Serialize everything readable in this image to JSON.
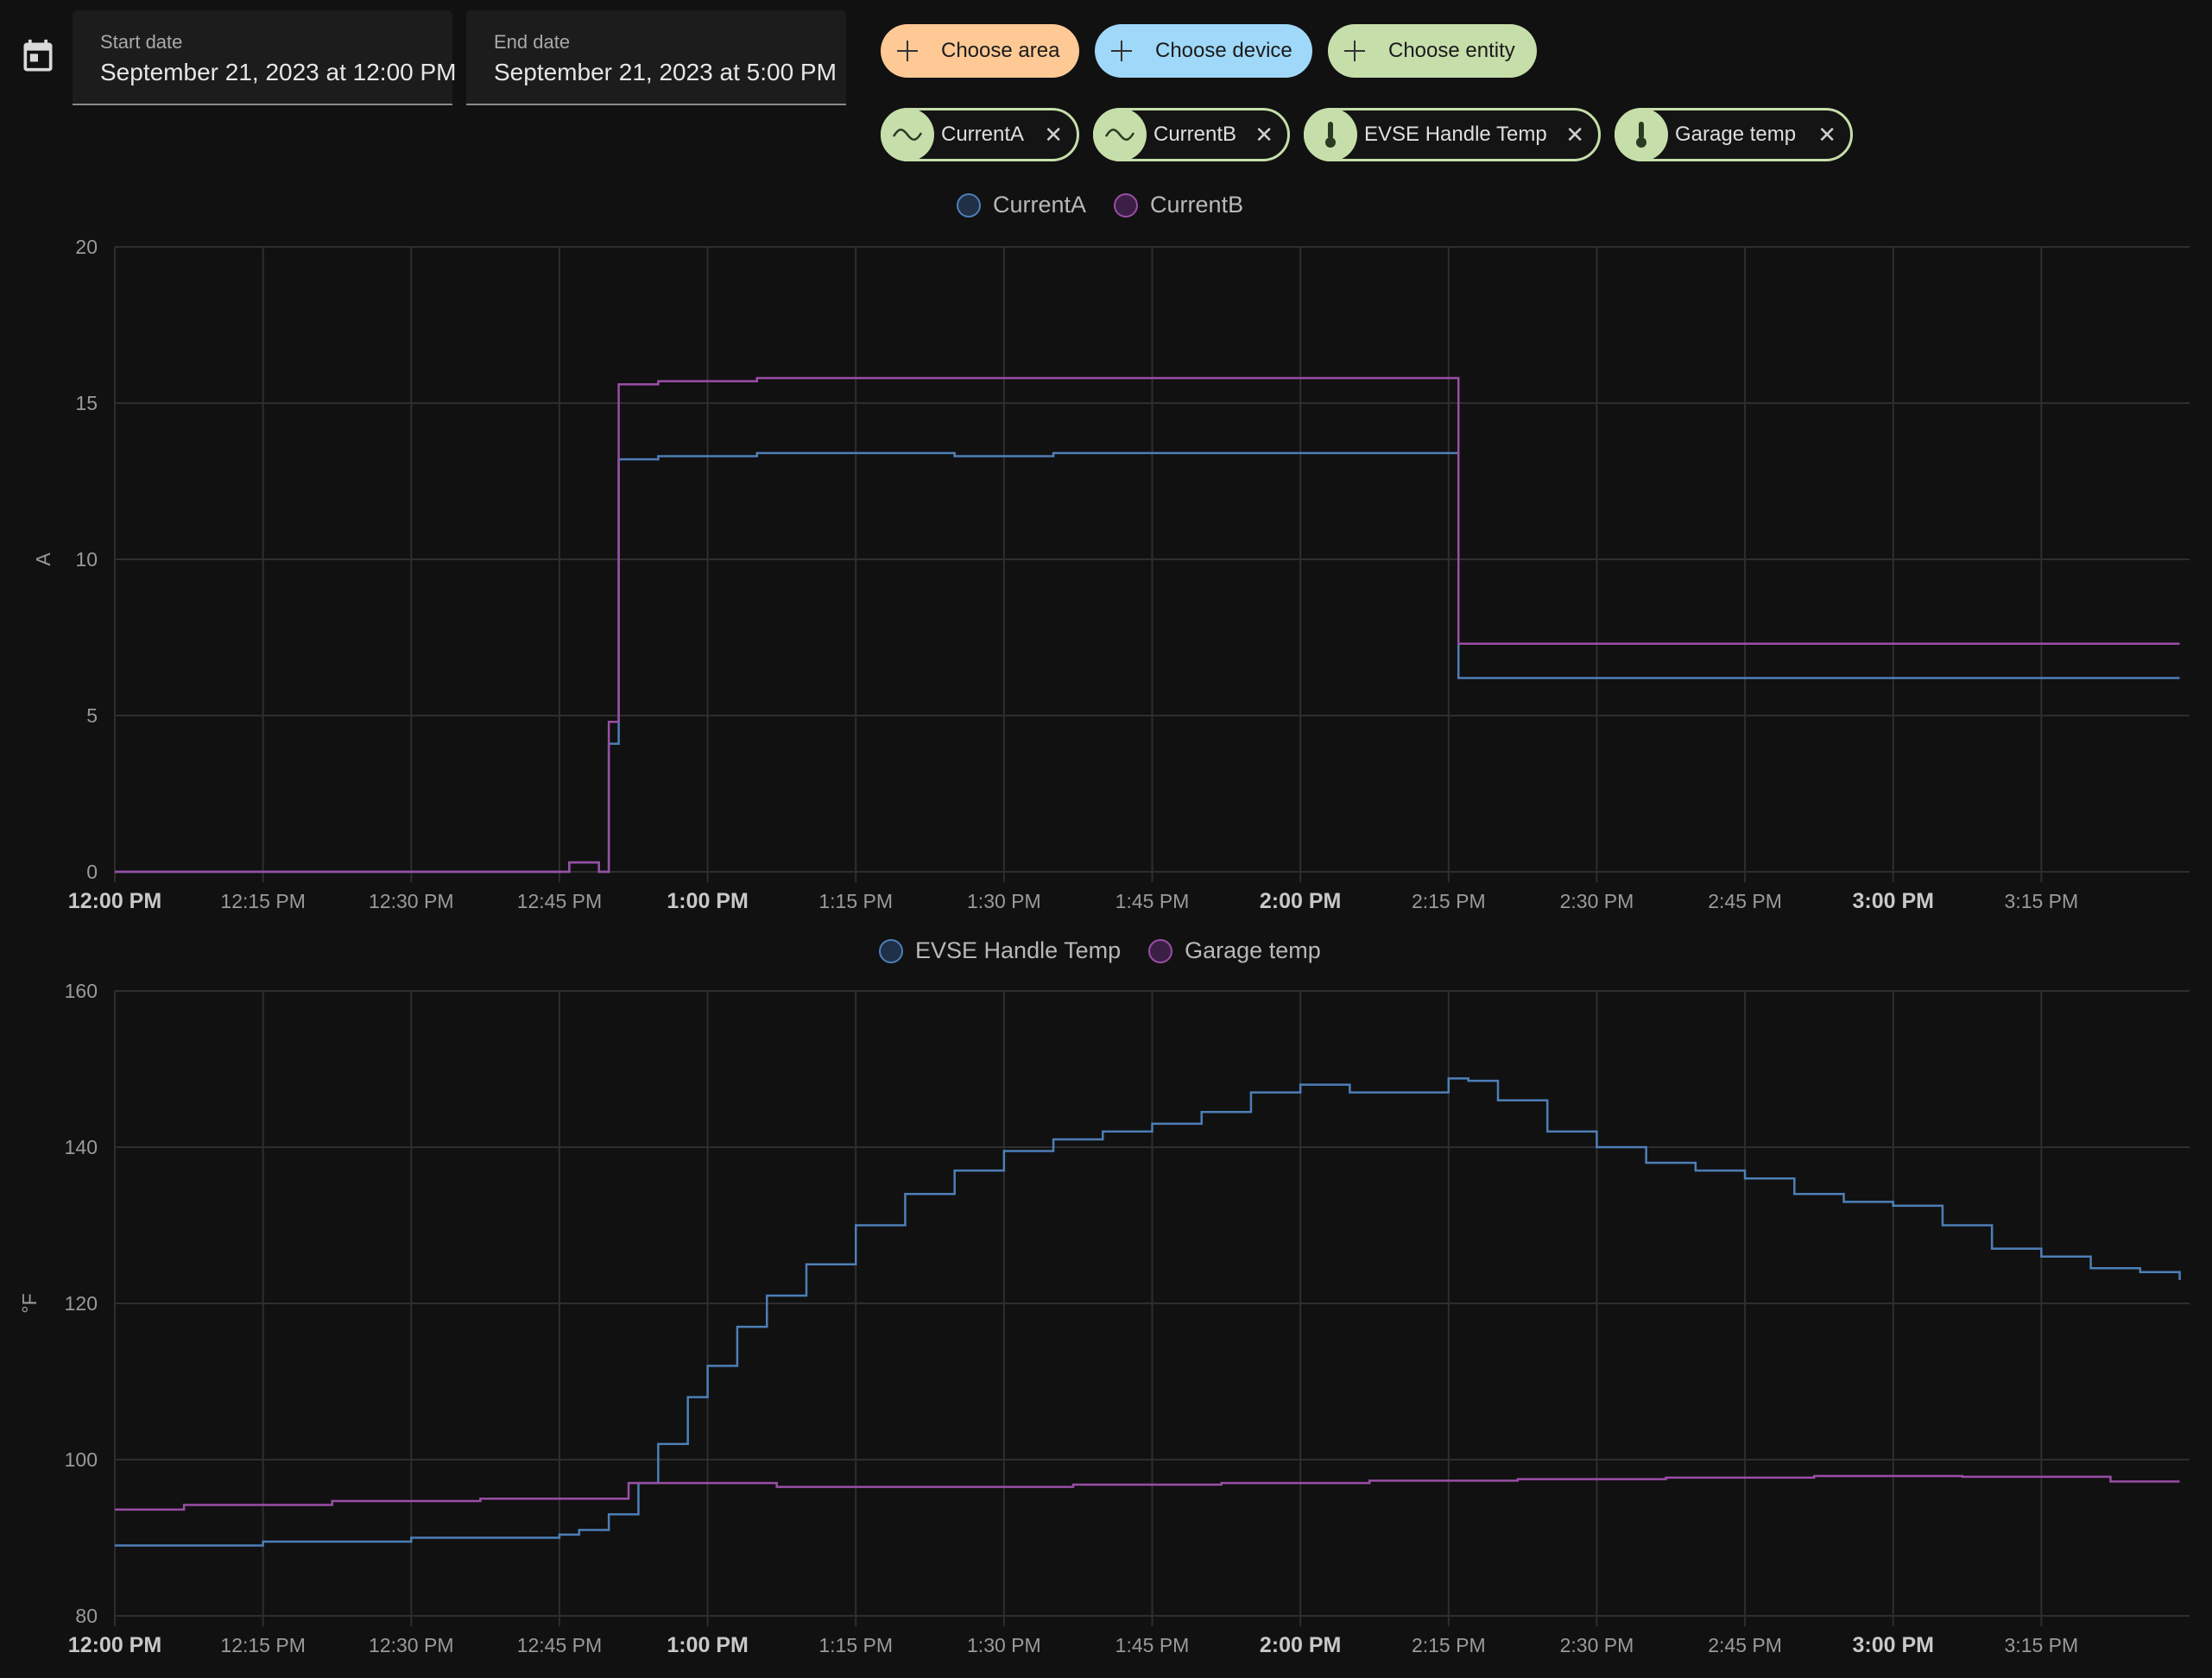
{
  "date_range": {
    "start": {
      "label": "Start date",
      "value": "September 21, 2023 at 12:00 PM"
    },
    "end": {
      "label": "End date",
      "value": "September 21, 2023 at 5:00 PM"
    }
  },
  "target_picker": {
    "add_buttons": [
      {
        "label": "Choose area",
        "color": "#ffc995"
      },
      {
        "label": "Choose device",
        "color": "#9fd8f8"
      },
      {
        "label": "Choose entity",
        "color": "#c6deaa"
      }
    ],
    "selected": [
      {
        "label": "CurrentA",
        "icon": "sine-wave-icon"
      },
      {
        "label": "CurrentB",
        "icon": "sine-wave-icon"
      },
      {
        "label": "EVSE Handle Temp",
        "icon": "thermometer-icon"
      },
      {
        "label": "Garage temp",
        "icon": "thermometer-icon"
      }
    ],
    "remove_glyph": "✕"
  },
  "colors": {
    "series_1": "#4e7fb8",
    "series_2": "#9a4ea6",
    "grid": "#2e2e2e",
    "axis_text": "#9a9a9a"
  },
  "chart_data": [
    {
      "type": "line",
      "step": true,
      "legend": [
        "CurrentA",
        "CurrentB"
      ],
      "legend_position": "top-center",
      "ylabel": "A",
      "ylim": [
        0,
        20
      ],
      "yticks": [
        "0",
        "5",
        "10",
        "15",
        "20"
      ],
      "xlim_minutes_after_noon": [
        0,
        210
      ],
      "xticks": [
        "12:00 PM",
        "12:15 PM",
        "12:30 PM",
        "12:45 PM",
        "1:00 PM",
        "1:15 PM",
        "1:30 PM",
        "1:45 PM",
        "2:00 PM",
        "2:15 PM",
        "2:30 PM",
        "2:45 PM",
        "3:00 PM",
        "3:15 PM"
      ],
      "bold_xticks": [
        "12:00 PM",
        "1:00 PM",
        "2:00 PM",
        "3:00 PM"
      ],
      "grid": true,
      "series": [
        {
          "name": "CurrentA",
          "x": [
            "12:00 PM",
            "12:46 PM",
            "12:47 PM",
            "12:49 PM",
            "12:50 PM",
            "12:51 PM",
            "12:55 PM",
            "12:58 PM",
            "1:05 PM",
            "1:15 PM",
            "1:25 PM",
            "1:35 PM",
            "1:45 PM",
            "1:55 PM",
            "2:05 PM",
            "2:16 PM",
            "2:16 PM",
            "3:29 PM"
          ],
          "y": [
            0,
            0.3,
            0.3,
            0,
            4.1,
            13.2,
            13.3,
            13.3,
            13.4,
            13.4,
            13.3,
            13.4,
            13.4,
            13.4,
            13.4,
            13.4,
            6.2,
            6.2
          ]
        },
        {
          "name": "CurrentB",
          "x": [
            "12:00 PM",
            "12:46 PM",
            "12:47 PM",
            "12:49 PM",
            "12:50 PM",
            "12:51 PM",
            "12:55 PM",
            "12:58 PM",
            "1:05 PM",
            "1:15 PM",
            "1:25 PM",
            "1:35 PM",
            "1:45 PM",
            "1:55 PM",
            "2:05 PM",
            "2:16 PM",
            "2:16 PM",
            "3:29 PM"
          ],
          "y": [
            0,
            0.3,
            0.3,
            0,
            4.8,
            15.6,
            15.7,
            15.7,
            15.8,
            15.8,
            15.8,
            15.8,
            15.8,
            15.8,
            15.8,
            15.8,
            7.3,
            7.3
          ]
        }
      ]
    },
    {
      "type": "line",
      "step": true,
      "legend": [
        "EVSE Handle Temp",
        "Garage temp"
      ],
      "legend_position": "top-center",
      "ylabel": "°F",
      "ylim": [
        80,
        160
      ],
      "yticks": [
        "80",
        "100",
        "120",
        "140",
        "160"
      ],
      "xlim_minutes_after_noon": [
        0,
        210
      ],
      "xticks": [
        "12:00 PM",
        "12:15 PM",
        "12:30 PM",
        "12:45 PM",
        "1:00 PM",
        "1:15 PM",
        "1:30 PM",
        "1:45 PM",
        "2:00 PM",
        "2:15 PM",
        "2:30 PM",
        "2:45 PM",
        "3:00 PM",
        "3:15 PM"
      ],
      "bold_xticks": [
        "12:00 PM",
        "1:00 PM",
        "2:00 PM",
        "3:00 PM"
      ],
      "grid": true,
      "series": [
        {
          "name": "EVSE Handle Temp",
          "x": [
            "12:00 PM",
            "12:15 PM",
            "12:30 PM",
            "12:45 PM",
            "12:47 PM",
            "12:50 PM",
            "12:53 PM",
            "12:55 PM",
            "12:58 PM",
            "1:00 PM",
            "1:03 PM",
            "1:06 PM",
            "1:10 PM",
            "1:15 PM",
            "1:20 PM",
            "1:25 PM",
            "1:30 PM",
            "1:35 PM",
            "1:40 PM",
            "1:45 PM",
            "1:50 PM",
            "1:55 PM",
            "2:00 PM",
            "2:05 PM",
            "2:10 PM",
            "2:15 PM",
            "2:17 PM",
            "2:20 PM",
            "2:25 PM",
            "2:30 PM",
            "2:35 PM",
            "2:40 PM",
            "2:45 PM",
            "2:50 PM",
            "2:55 PM",
            "3:00 PM",
            "3:05 PM",
            "3:10 PM",
            "3:15 PM",
            "3:20 PM",
            "3:25 PM",
            "3:29 PM"
          ],
          "y": [
            89,
            89.5,
            90,
            90.4,
            91,
            93,
            97,
            102,
            108,
            112,
            117,
            121,
            125,
            130,
            134,
            137,
            139.5,
            141,
            142,
            143,
            144.5,
            147,
            148,
            147,
            147,
            148.8,
            148.5,
            146,
            142,
            140,
            138,
            137,
            136,
            134,
            133,
            132.5,
            130,
            127,
            126,
            124.5,
            124,
            123
          ]
        },
        {
          "name": "Garage temp",
          "x": [
            "12:00 PM",
            "12:07 PM",
            "12:22 PM",
            "12:37 PM",
            "12:52 PM",
            "1:07 PM",
            "1:22 PM",
            "1:37 PM",
            "1:52 PM",
            "2:07 PM",
            "2:22 PM",
            "2:37 PM",
            "2:52 PM",
            "3:07 PM",
            "3:22 PM",
            "3:29 PM"
          ],
          "y": [
            93.6,
            94.2,
            94.7,
            95,
            97,
            96.5,
            96.5,
            96.8,
            97,
            97.3,
            97.5,
            97.7,
            97.9,
            97.8,
            97.2,
            97.2
          ]
        }
      ]
    }
  ]
}
